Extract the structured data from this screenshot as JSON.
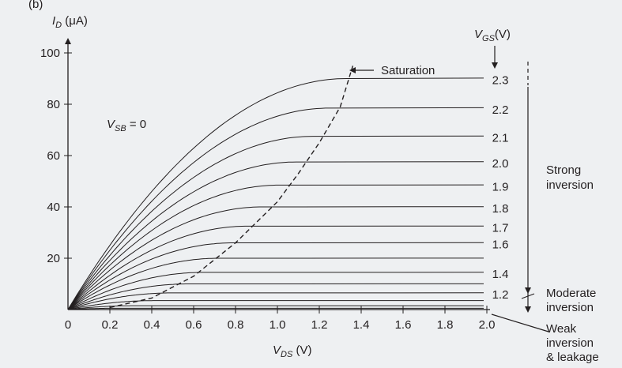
{
  "panel_label": "(b)",
  "chart_data": {
    "type": "line",
    "title": "",
    "xlabel": "V_DS (V)",
    "ylabel": "I_D (μA)",
    "xlim": [
      0,
      2.0
    ],
    "ylim": [
      0,
      100
    ],
    "x_ticks": [
      "0",
      "0.2",
      "0.4",
      "0.6",
      "0.8",
      "1.0",
      "1.2",
      "1.4",
      "1.6",
      "1.8",
      "2.0"
    ],
    "y_ticks": [
      "20",
      "40",
      "60",
      "80",
      "100"
    ],
    "grid": false,
    "condition": "V_SB = 0",
    "legend_title": "V_GS (V)",
    "series": [
      {
        "name": "2.3",
        "label": "2.3",
        "saturation_current": 90,
        "vdsat": 1.33
      },
      {
        "name": "2.2",
        "label": "2.2",
        "saturation_current": 78.5,
        "vdsat": 1.25
      },
      {
        "name": "2.1",
        "label": "2.1",
        "saturation_current": 67.5,
        "vdsat": 1.17
      },
      {
        "name": "2.0",
        "label": "2.0",
        "saturation_current": 57.5,
        "vdsat": 1.09
      },
      {
        "name": "1.9",
        "label": "1.9",
        "saturation_current": 48.5,
        "vdsat": 1.01
      },
      {
        "name": "1.8",
        "label": "1.8",
        "saturation_current": 40.0,
        "vdsat": 0.93
      },
      {
        "name": "1.7",
        "label": "1.7",
        "saturation_current": 32.5,
        "vdsat": 0.86
      },
      {
        "name": "1.6",
        "label": "1.6",
        "saturation_current": 26.0,
        "vdsat": 0.79
      },
      {
        "name": "",
        "label": "",
        "saturation_current": 20.0,
        "vdsat": 0.72
      },
      {
        "name": "1.4",
        "label": "1.4",
        "saturation_current": 14.5,
        "vdsat": 0.65
      },
      {
        "name": "",
        "label": "",
        "saturation_current": 10.0,
        "vdsat": 0.58
      },
      {
        "name": "1.2",
        "label": "1.2",
        "saturation_current": 6.5,
        "vdsat": 0.5
      },
      {
        "name": "",
        "label": "",
        "saturation_current": 3.5,
        "vdsat": 0.42
      },
      {
        "name": "",
        "label": "",
        "saturation_current": 1.5,
        "vdsat": 0.32
      },
      {
        "name": "",
        "label": "",
        "saturation_current": 0.5,
        "vdsat": 0.22
      }
    ],
    "saturation_boundary": {
      "style": "dashed",
      "x": [
        0.2,
        0.4,
        0.6,
        0.8,
        1.0,
        1.1,
        1.2,
        1.3,
        1.36
      ],
      "y": [
        0.8,
        4.5,
        13.0,
        26.0,
        42.0,
        53.0,
        65.0,
        79.0,
        95.0
      ]
    },
    "annotations": {
      "saturation": "Saturation",
      "strong_inversion": [
        "Strong",
        "inversion"
      ],
      "moderate_inversion": [
        "Moderate",
        "inversion"
      ],
      "weak_inversion": [
        "Weak",
        "inversion",
        "& leakage"
      ]
    }
  }
}
